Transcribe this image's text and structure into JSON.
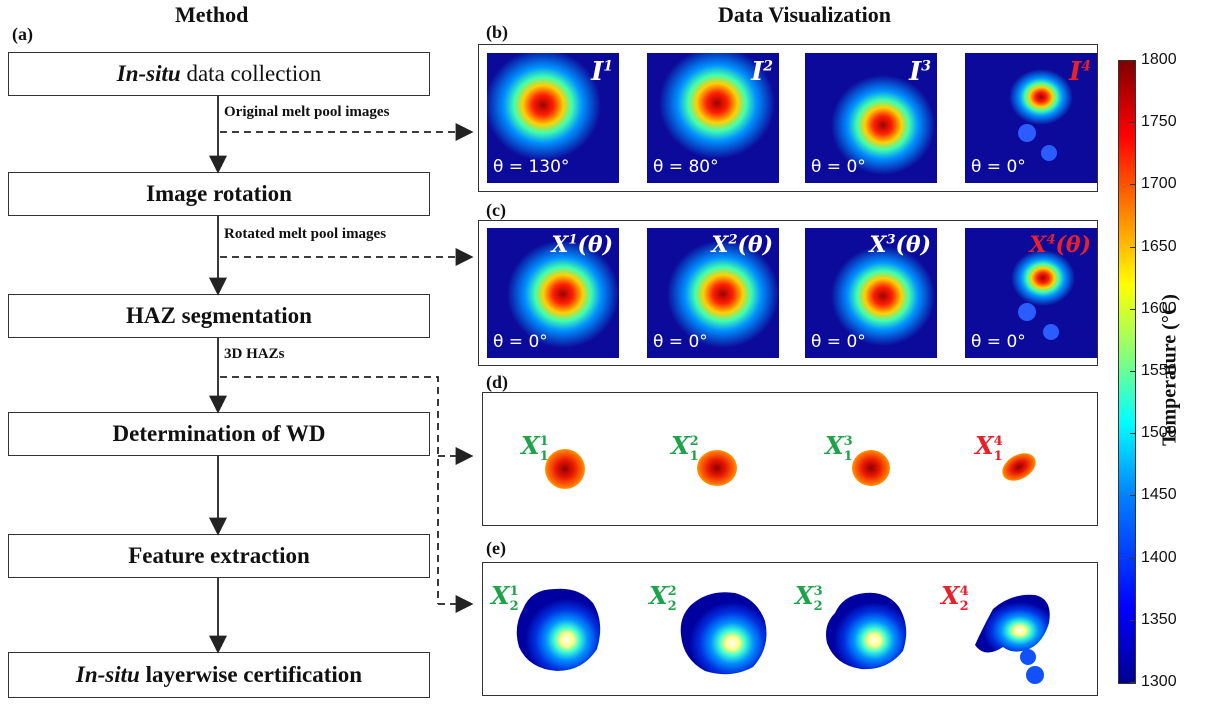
{
  "headers": {
    "method": "Method",
    "data_visualization": "Data Visualization"
  },
  "panel_labels": {
    "a": "(a)",
    "b": "(b)",
    "c": "(c)",
    "d": "(d)",
    "e": "(e)"
  },
  "steps": [
    {
      "pre": "In-situ",
      "post": " data collection"
    },
    {
      "pre": "",
      "post": "Image rotation"
    },
    {
      "pre": "",
      "post": "HAZ segmentation"
    },
    {
      "pre": "",
      "post": "Determination of WD"
    },
    {
      "pre": "",
      "post": "Feature extraction"
    },
    {
      "pre": "In-situ",
      "post": " layerwise certification"
    }
  ],
  "arrow_labels": {
    "original": "Original melt pool images",
    "rotated": "Rotated melt pool images",
    "haz": "3D HAZs"
  },
  "row_b": [
    {
      "label": "I",
      "sup": "1",
      "theta": "θ = 130°"
    },
    {
      "label": "I",
      "sup": "2",
      "theta": "θ = 80°"
    },
    {
      "label": "I",
      "sup": "3",
      "theta": "θ = 0°"
    },
    {
      "label": "I",
      "sup": "4",
      "theta": "θ = 0°"
    }
  ],
  "row_c": [
    {
      "label": "X",
      "sup": "1",
      "arg": "(θ)",
      "theta": "θ = 0°"
    },
    {
      "label": "X",
      "sup": "2",
      "arg": "(θ)",
      "theta": "θ = 0°"
    },
    {
      "label": "X",
      "sup": "3",
      "arg": "(θ)",
      "theta": "θ = 0°"
    },
    {
      "label": "X",
      "sup": "4",
      "arg": "(θ)",
      "theta": "θ = 0°"
    }
  ],
  "row_d": [
    {
      "label": "X",
      "sup": "1",
      "sub": "1"
    },
    {
      "label": "X",
      "sup": "2",
      "sub": "1"
    },
    {
      "label": "X",
      "sup": "3",
      "sub": "1"
    },
    {
      "label": "X",
      "sup": "4",
      "sub": "1"
    }
  ],
  "row_e": [
    {
      "label": "X",
      "sup": "1",
      "sub": "2"
    },
    {
      "label": "X",
      "sup": "2",
      "sub": "2"
    },
    {
      "label": "X",
      "sup": "3",
      "sub": "2"
    },
    {
      "label": "X",
      "sup": "4",
      "sub": "2"
    }
  ],
  "colorbar": {
    "title": "Temperature (°C)",
    "ticks": [
      "1800",
      "1750",
      "1700",
      "1650",
      "1600",
      "1550",
      "1500",
      "1450",
      "1400",
      "1350",
      "1300"
    ]
  },
  "colors": {
    "anomaly": "#e8202a",
    "normal": "#1fa34a",
    "tile_bg": "#0c0a9a"
  }
}
